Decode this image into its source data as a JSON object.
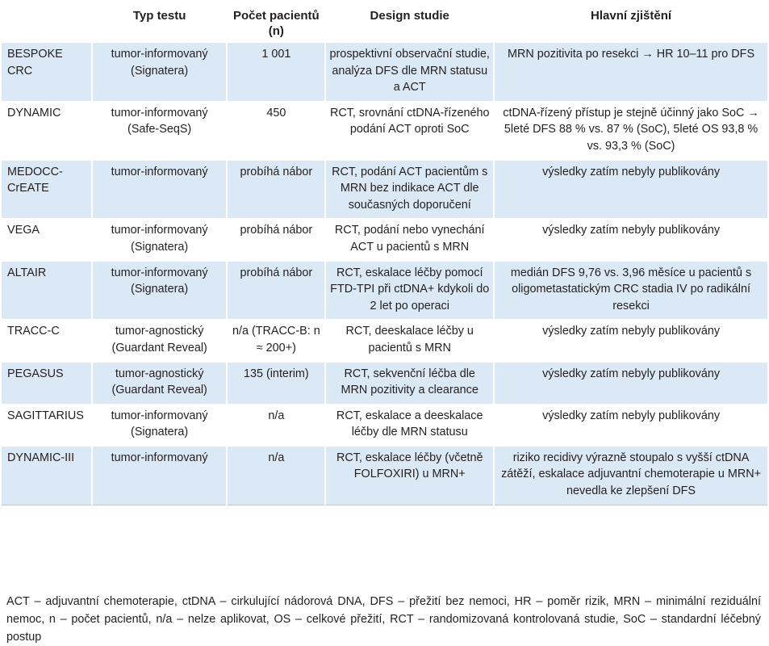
{
  "headers": [
    "",
    "Typ testu",
    "Počet pacientů (n)",
    "Design studie",
    "Hlavní zjištění"
  ],
  "rows": [
    {
      "name": "BESPOKE CRC",
      "type": "tumor-informovaný (Signatera)",
      "n": "1 001",
      "design": "prospektivní observační studie, analýza DFS dle MRN statusu a ACT",
      "finding": "MRN pozitivita po resekci → HR 10–11 pro DFS"
    },
    {
      "name": "DYNAMIC",
      "type": "tumor-informovaný (Safe-SeqS)",
      "n": "450",
      "design": "RCT, srovnání ctDNA-řízeného podání ACT oproti SoC",
      "finding": "ctDNA-řízený přístup je stejně účinný jako SoC → 5leté DFS 88 % vs. 87 % (SoC), 5leté OS 93,8 % vs. 93,3 % (SoC)"
    },
    {
      "name": "MEDOCC-CrEATE",
      "type": "tumor-informovaný",
      "n": "probíhá nábor",
      "design": "RCT, podání ACT pacientům s MRN bez indikace ACT dle současných doporučení",
      "finding": "výsledky zatím nebyly publikovány"
    },
    {
      "name": "VEGA",
      "type": "tumor-informovaný (Signatera)",
      "n": "probíhá nábor",
      "design": "RCT, podání nebo vynechání ACT u pacientů s MRN",
      "finding": "výsledky zatím nebyly publikovány"
    },
    {
      "name": "ALTAIR",
      "type": "tumor-informovaný (Signatera)",
      "n": "probíhá nábor",
      "design": "RCT, eskalace léčby pomocí FTD-TPI při ctDNA+ kdykoli do 2 let po operaci",
      "finding": "medián DFS 9,76 vs. 3,96 měsíce u pacientů s oligometastatickým CRC stadia IV po radikální resekci"
    },
    {
      "name": "TRACC-C",
      "type": "tumor-agnostický (Guardant Reveal)",
      "n": "n/a (TRACC-B: n ≈ 200+)",
      "design": "RCT, deeskalace léčby u pacientů s MRN",
      "finding": "výsledky zatím nebyly publikovány"
    },
    {
      "name": "PEGASUS",
      "type": "tumor-agnostický (Guardant Reveal)",
      "n": "135 (interim)",
      "design": "RCT, sekvenční léčba dle MRN pozitivity a clearance",
      "finding": "výsledky zatím nebyly publikovány"
    },
    {
      "name": "SAGITTARIUS",
      "type": "tumor-informovaný (Signatera)",
      "n": "n/a",
      "design": "RCT, eskalace a deeskalace léčby dle MRN statusu",
      "finding": "výsledky zatím nebyly publikovány"
    },
    {
      "name": "DYNAMIC-III",
      "type": "tumor-informovaný",
      "n": "n/a",
      "design": "RCT, eskalace léčby (včetně FOLFOXIRI) u MRN+",
      "finding": "riziko recidivy výrazně stoupalo s vyšší ctDNA zátěží, eskalace adjuvantní chemoterapie u MRN+ nevedla ke zlepšení DFS"
    }
  ],
  "footnote": "ACT – adjuvantní chemoterapie, ctDNA – cirkulující nádorová DNA, DFS – přežití bez nemoci, HR – poměr rizik, MRN – minimální reziduální nemoc, n – počet pacientů, n/a – nelze aplikovat, OS – celkové přežití, RCT – randomizovaná kontrolovaná studie, SoC – standardní léčebný postup"
}
